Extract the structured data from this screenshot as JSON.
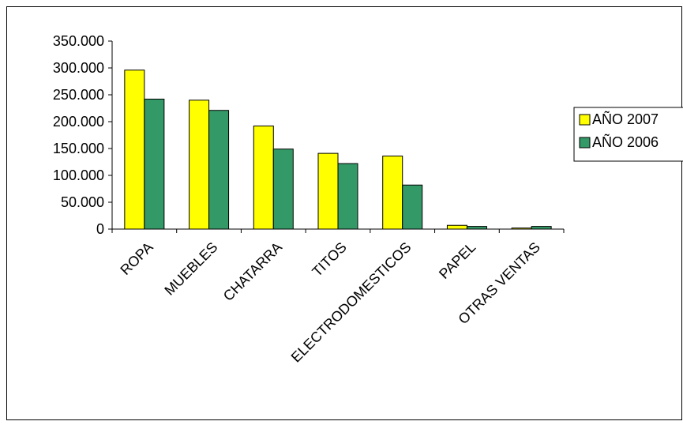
{
  "chart_data": {
    "type": "bar",
    "title": "",
    "xlabel": "",
    "ylabel": "",
    "categories": [
      "ROPA",
      "MUEBLES",
      "CHATARRA",
      "TITOS",
      "ELECTRODOMESTICOS",
      "PAPEL",
      "OTRAS VENTAS"
    ],
    "series": [
      {
        "name": "AÑO 2007",
        "color": "#ffff00",
        "values": [
          296000,
          240000,
          192000,
          141000,
          136000,
          7000,
          2000
        ]
      },
      {
        "name": "AÑO 2006",
        "color": "#339966",
        "values": [
          242000,
          221000,
          149000,
          122000,
          82000,
          5000,
          5000
        ]
      }
    ],
    "ylim": [
      0,
      350000
    ],
    "yticks": [
      0,
      50000,
      100000,
      150000,
      200000,
      250000,
      300000,
      350000
    ],
    "ytick_labels": [
      "0",
      "50.000",
      "100.000",
      "150.000",
      "200.000",
      "250.000",
      "300.000",
      "350.000"
    ],
    "grid": false,
    "legend": {
      "position": "right"
    }
  }
}
